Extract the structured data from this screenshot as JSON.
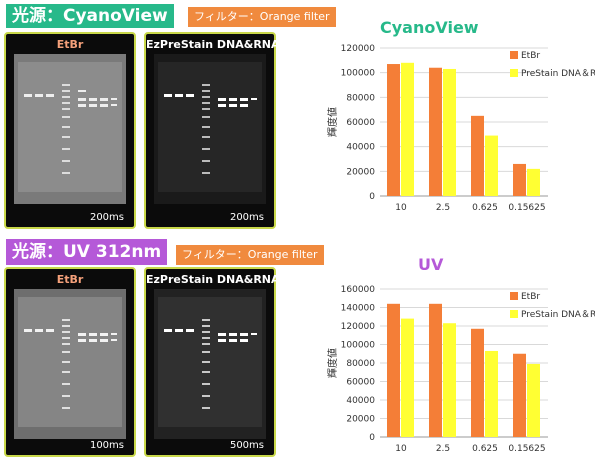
{
  "panels": [
    {
      "light_title": "光源：CyanoView",
      "filter_label": "フィルター：Orange filter",
      "gels": [
        {
          "label": "EtBr",
          "exposure": "200ms"
        },
        {
          "label": "EzPreStain DNA&RNA",
          "exposure": "200ms"
        }
      ]
    },
    {
      "light_title": "光源：UV  312nm",
      "filter_label": "フィルター：Orange filter",
      "gels": [
        {
          "label": "EtBr",
          "exposure": "100ms"
        },
        {
          "label": "EzPreStain DNA&RNA",
          "exposure": "500ms"
        }
      ]
    }
  ],
  "colors": {
    "etbr": "#f47e37",
    "prestain": "#ffff33",
    "cyano_accent": "#27b98a",
    "uv_accent": "#b559d8"
  },
  "chart_data": [
    {
      "type": "bar",
      "title": "CyanoView",
      "ylabel": "輝度値",
      "categories": [
        "10",
        "2.5",
        "0.625",
        "0.15625"
      ],
      "yticks": [
        "0",
        "20000",
        "40000",
        "60000",
        "80000",
        "100000",
        "120000"
      ],
      "ylim": [
        0,
        120000
      ],
      "grid": true,
      "legend": "top-right",
      "series": [
        {
          "name": "EtBr",
          "values": [
            107000,
            104000,
            65000,
            26000
          ]
        },
        {
          "name": "PreStain DNA＆RNA",
          "values": [
            108000,
            103000,
            49000,
            22000
          ]
        }
      ]
    },
    {
      "type": "bar",
      "title": "UV",
      "ylabel": "輝度値",
      "categories": [
        "10",
        "2.5",
        "0.625",
        "0.15625"
      ],
      "yticks": [
        "0",
        "20000",
        "40000",
        "60000",
        "80000",
        "100000",
        "120000",
        "140000",
        "160000"
      ],
      "ylim": [
        0,
        160000
      ],
      "grid": true,
      "legend": "top-right",
      "series": [
        {
          "name": "EtBr",
          "values": [
            144000,
            144000,
            117000,
            90000
          ]
        },
        {
          "name": "PreStain DNA＆RNA",
          "values": [
            128000,
            123000,
            93000,
            79000
          ]
        }
      ]
    }
  ]
}
